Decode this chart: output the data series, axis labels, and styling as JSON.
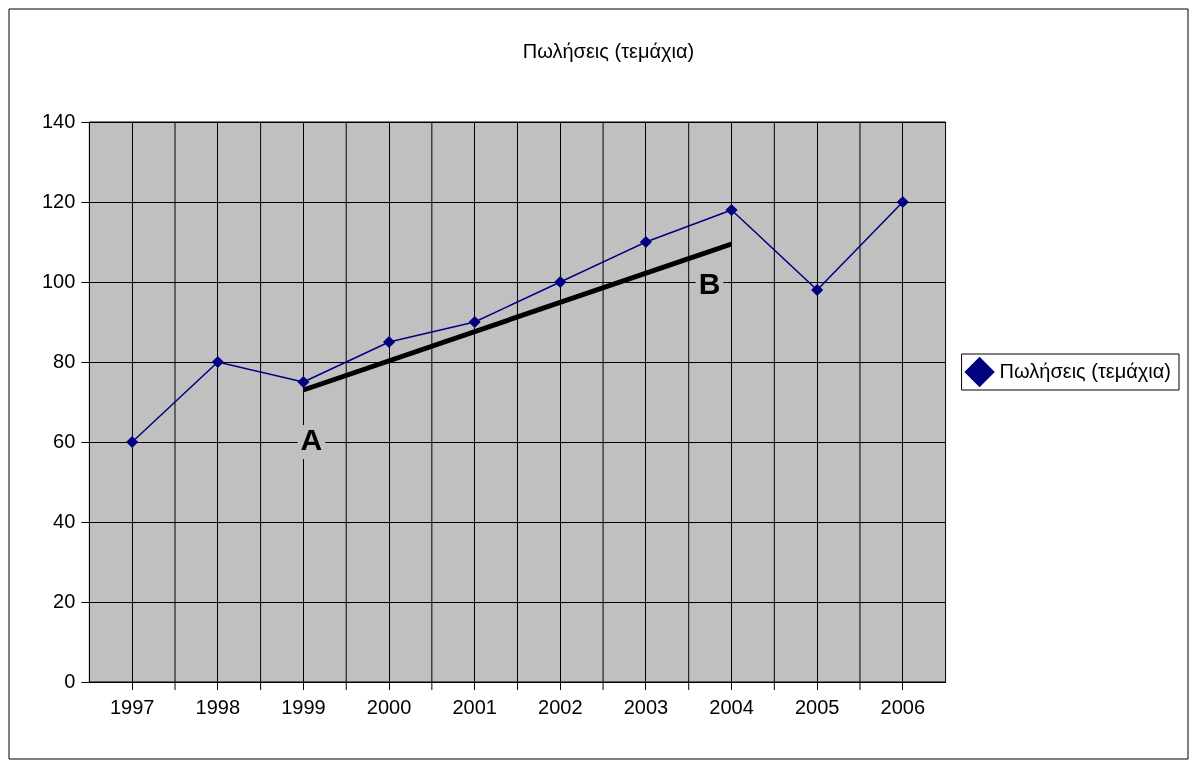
{
  "chart_data": {
    "type": "line",
    "title": "Πωλήσεις (τεμάχια)",
    "categories": [
      "1997",
      "1998",
      "1999",
      "2000",
      "2001",
      "2002",
      "2003",
      "2004",
      "2005",
      "2006"
    ],
    "series": [
      {
        "name": "Πωλήσεις (τεμάχια)",
        "color": "#000080",
        "values": [
          60,
          80,
          75,
          85,
          90,
          100,
          110,
          118,
          98,
          120
        ],
        "marker": "diamond"
      },
      {
        "type": "line",
        "color": "#000000",
        "values": [
          null,
          null,
          73,
          null,
          null,
          null,
          null,
          109.5,
          null,
          null
        ],
        "marker": "none"
      }
    ],
    "annotations": [
      "A",
      "B"
    ],
    "ylim": [
      0,
      140
    ],
    "yticks": [
      0,
      20,
      40,
      60,
      80,
      100,
      120,
      140
    ],
    "grid": true,
    "legend": "right"
  }
}
